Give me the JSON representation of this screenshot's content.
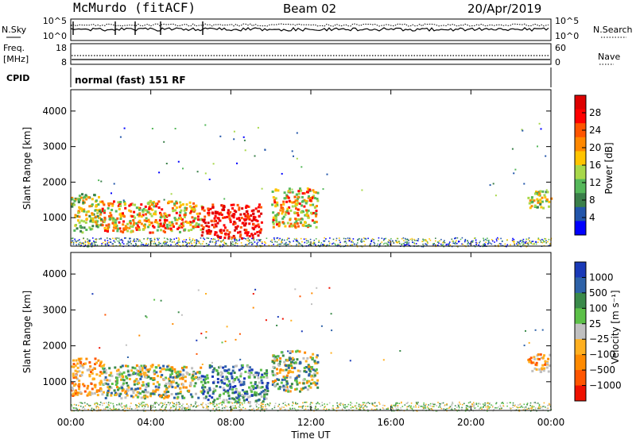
{
  "header": {
    "station": "McMurdo (fitACF)",
    "beam": "Beam 02",
    "date": "20/Apr/2019"
  },
  "noise_panel": {
    "left_label": "N.Sky",
    "left_ticks": [
      "10^5",
      "10^0"
    ],
    "right_label": "N.Search",
    "right_ticks": [
      "10^5",
      "10^0"
    ]
  },
  "freq_panel": {
    "left_label_line1": "Freq.",
    "left_label_line2": "[MHz]",
    "left_ticks": [
      "18",
      "8"
    ],
    "right_label": "Nave",
    "right_ticks": [
      "60",
      "0"
    ]
  },
  "cpid_panel": {
    "label": "CPID",
    "mode_text": "normal (fast) 151 RF"
  },
  "chart_data": [
    {
      "type": "heatmap",
      "name": "power",
      "ylabel": "Slant Range [km]",
      "y_ticks": [
        1000,
        2000,
        3000,
        4000
      ],
      "ylim": [
        200,
        4600
      ],
      "x_ticks": [
        "00:00",
        "04:00",
        "08:00",
        "12:00",
        "16:00",
        "20:00",
        "00:00"
      ],
      "xlim_hours": [
        0,
        24
      ],
      "colorbar": {
        "label": "Power [dB]",
        "ticks": [
          "4",
          "8",
          "12",
          "16",
          "20",
          "24",
          "28"
        ],
        "colors": [
          "#0000ff",
          "#2255aa",
          "#3a7f4a",
          "#55b85a",
          "#a8d84a",
          "#ffc400",
          "#ff8800",
          "#ff5500",
          "#ff0000",
          "#dd0000"
        ]
      },
      "echo_regions": [
        {
          "t_start": 0.0,
          "t_end": 1.5,
          "r_low": 600,
          "r_high": 1700,
          "level": "medium"
        },
        {
          "t_start": 1.5,
          "t_end": 6.5,
          "r_low": 600,
          "r_high": 1500,
          "level": "high"
        },
        {
          "t_start": 6.5,
          "t_end": 9.5,
          "r_low": 450,
          "r_high": 1400,
          "level": "very-high"
        },
        {
          "t_start": 10.0,
          "t_end": 12.3,
          "r_low": 750,
          "r_high": 1900,
          "level": "high"
        },
        {
          "t_start": 22.8,
          "t_end": 24.0,
          "r_low": 1300,
          "r_high": 1800,
          "level": "medium"
        }
      ]
    },
    {
      "type": "heatmap",
      "name": "velocity",
      "ylabel": "Slant Range [km]",
      "y_ticks": [
        1000,
        2000,
        3000,
        4000
      ],
      "ylim": [
        200,
        4600
      ],
      "x_ticks": [
        "00:00",
        "04:00",
        "08:00",
        "12:00",
        "16:00",
        "20:00",
        "00:00"
      ],
      "xlabel": "Time UT",
      "xlim_hours": [
        0,
        24
      ],
      "colorbar": {
        "label": "Velocity [m s⁻¹]",
        "ticks": [
          "1000",
          "500",
          "100",
          "25",
          "−25",
          "−100",
          "−500",
          "−1000"
        ],
        "colors": [
          "#1a3ab8",
          "#2e62a8",
          "#3a8a4a",
          "#5cc048",
          "#c0c0c0",
          "#ffb020",
          "#ff8a00",
          "#ff5500",
          "#ee1100"
        ]
      },
      "echo_regions": [
        {
          "t_start": 0.0,
          "t_end": 1.5,
          "r_low": 600,
          "r_high": 1700,
          "sign": "negative"
        },
        {
          "t_start": 1.5,
          "t_end": 6.5,
          "r_low": 550,
          "r_high": 1500,
          "sign": "mixed"
        },
        {
          "t_start": 6.5,
          "t_end": 9.8,
          "r_low": 450,
          "r_high": 1500,
          "sign": "positive"
        },
        {
          "t_start": 10.0,
          "t_end": 12.3,
          "r_low": 750,
          "r_high": 1900,
          "sign": "mixed"
        },
        {
          "t_start": 22.8,
          "t_end": 24.0,
          "r_low": 1300,
          "r_high": 1800,
          "sign": "negative"
        }
      ]
    }
  ]
}
